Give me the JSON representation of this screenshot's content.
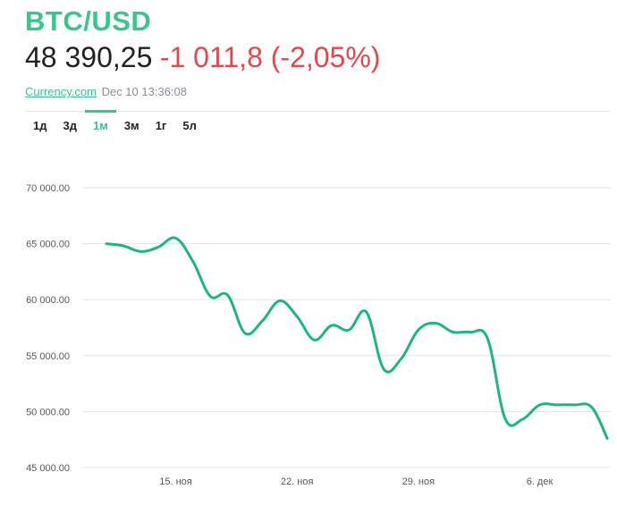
{
  "header": {
    "pair": "BTC/USD",
    "price": "48 390,25",
    "change": "-1 011,8 (-2,05%)",
    "source": "Currency.com",
    "timestamp": "Dec 10 13:36:08"
  },
  "tabs": [
    {
      "label": "1д",
      "active": false
    },
    {
      "label": "3д",
      "active": false
    },
    {
      "label": "1м",
      "active": true
    },
    {
      "label": "3м",
      "active": false
    },
    {
      "label": "1г",
      "active": false
    },
    {
      "label": "5л",
      "active": false
    }
  ],
  "colors": {
    "accent": "#3bc48c",
    "line": "#1db583",
    "negative": "#e8474a"
  },
  "chart_data": {
    "type": "line",
    "title": "",
    "xlabel": "",
    "ylabel": "",
    "ylim": [
      45000,
      70000
    ],
    "xlim": [
      10.2,
      40.5
    ],
    "y_ticks": [
      70000,
      65000,
      60000,
      55000,
      50000,
      45000
    ],
    "y_tick_labels": [
      "70 000.00",
      "65 000.00",
      "60 000.00",
      "55 000.00",
      "50 000.00",
      "45 000.00"
    ],
    "x_ticks": [
      15,
      22,
      29,
      36
    ],
    "x_tick_labels": [
      "15. ноя",
      "22. ноя",
      "29. ноя",
      "6. дек"
    ],
    "grid": true,
    "series": [
      {
        "x": [
          11,
          12,
          13,
          14,
          15,
          16,
          17,
          18,
          19,
          20,
          21,
          22,
          23,
          24,
          25,
          26,
          27,
          28,
          29,
          30,
          31,
          32,
          33,
          34,
          35,
          36,
          37,
          38,
          39,
          39.9
        ],
        "values": [
          65000,
          64800,
          64300,
          64700,
          65500,
          63400,
          60300,
          60400,
          57000,
          58100,
          59900,
          58500,
          56400,
          57700,
          57300,
          58900,
          53800,
          54700,
          57300,
          57900,
          57100,
          57100,
          56500,
          49400,
          49300,
          50600,
          50600,
          50600,
          50400,
          47600
        ]
      }
    ]
  }
}
